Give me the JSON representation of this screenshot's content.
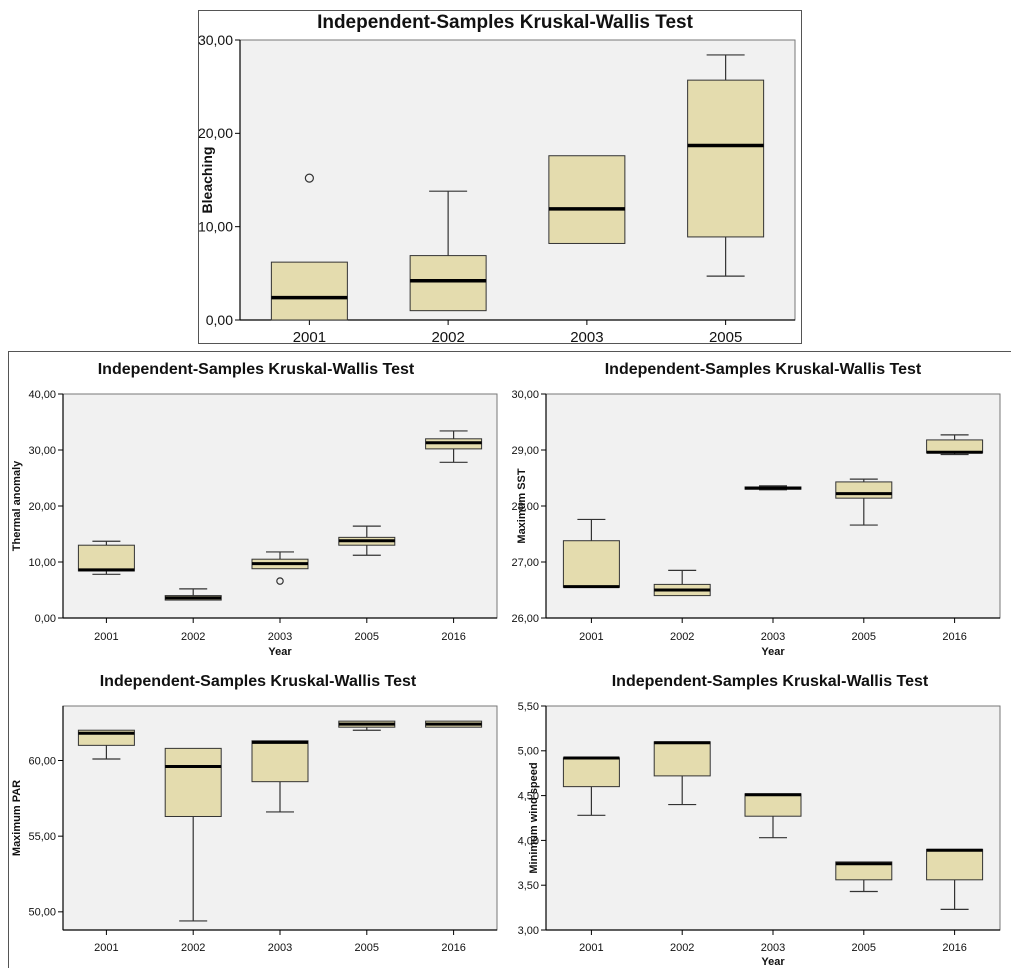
{
  "chart_data": [
    {
      "type": "boxplot",
      "title": "Independent-Samples Kruskal-Wallis Test",
      "ylabel": "Bleaching",
      "xlabel": "",
      "ylim": [
        0,
        30
      ],
      "yticks": [
        0,
        10,
        20,
        30
      ],
      "ytick_labels": [
        "0,00",
        "10,00",
        "20,00",
        "30,00"
      ],
      "categories": [
        "2001",
        "2002",
        "2003",
        "2005"
      ],
      "boxes": [
        {
          "min": 0.0,
          "q1": 0.0,
          "median": 2.4,
          "q3": 6.2,
          "max": 6.2,
          "outliers": [
            15.2
          ]
        },
        {
          "min": 1.0,
          "q1": 1.0,
          "median": 4.2,
          "q3": 6.9,
          "max": 13.8,
          "outliers": []
        },
        {
          "min": 8.2,
          "q1": 8.2,
          "median": 11.9,
          "q3": 17.6,
          "max": 17.6,
          "outliers": []
        },
        {
          "min": 4.7,
          "q1": 8.9,
          "median": 18.7,
          "q3": 25.7,
          "max": 28.4,
          "outliers": []
        }
      ]
    },
    {
      "type": "boxplot",
      "title": "Independent-Samples Kruskal-Wallis Test",
      "ylabel": "Thermal anomaly",
      "xlabel": "Year",
      "ylim": [
        0,
        40
      ],
      "yticks": [
        0,
        10,
        20,
        30,
        40
      ],
      "ytick_labels": [
        "0,00",
        "10,00",
        "20,00",
        "30,00",
        "40,00"
      ],
      "categories": [
        "2001",
        "2002",
        "2003",
        "2005",
        "2016"
      ],
      "boxes": [
        {
          "min": 7.8,
          "q1": 8.4,
          "median": 8.6,
          "q3": 13.0,
          "max": 13.7,
          "outliers": []
        },
        {
          "min": 3.2,
          "q1": 3.2,
          "median": 3.6,
          "q3": 4.0,
          "max": 5.2,
          "outliers": []
        },
        {
          "min": 8.8,
          "q1": 8.8,
          "median": 9.7,
          "q3": 10.5,
          "max": 11.8,
          "outliers": [
            6.6
          ]
        },
        {
          "min": 11.2,
          "q1": 13.0,
          "median": 13.8,
          "q3": 14.4,
          "max": 16.4,
          "outliers": []
        },
        {
          "min": 27.8,
          "q1": 30.2,
          "median": 31.3,
          "q3": 32.0,
          "max": 33.4,
          "outliers": []
        }
      ]
    },
    {
      "type": "boxplot",
      "title": "Independent-Samples Kruskal-Wallis Test",
      "ylabel": "Maximum SST",
      "xlabel": "Year",
      "ylim": [
        26,
        30
      ],
      "yticks": [
        26,
        27,
        28,
        29,
        30
      ],
      "ytick_labels": [
        "26,00",
        "27,00",
        "28,00",
        "29,00",
        "30,00"
      ],
      "categories": [
        "2001",
        "2002",
        "2003",
        "2005",
        "2016"
      ],
      "boxes": [
        {
          "min": 26.55,
          "q1": 26.55,
          "median": 26.56,
          "q3": 27.38,
          "max": 27.76,
          "outliers": []
        },
        {
          "min": 26.4,
          "q1": 26.4,
          "median": 26.5,
          "q3": 26.6,
          "max": 26.85,
          "outliers": []
        },
        {
          "min": 28.29,
          "q1": 28.3,
          "median": 28.32,
          "q3": 28.34,
          "max": 28.36,
          "outliers": []
        },
        {
          "min": 27.66,
          "q1": 28.14,
          "median": 28.22,
          "q3": 28.43,
          "max": 28.48,
          "outliers": []
        },
        {
          "min": 28.92,
          "q1": 28.95,
          "median": 28.96,
          "q3": 29.18,
          "max": 29.27,
          "outliers": []
        }
      ]
    },
    {
      "type": "boxplot",
      "title": "Independent-Samples Kruskal-Wallis Test",
      "ylabel": "Maximum PAR",
      "xlabel": "",
      "ylim": [
        48.8,
        63.6
      ],
      "yticks": [
        50,
        55,
        60
      ],
      "ytick_labels": [
        "50,00",
        "55,00",
        "60,00"
      ],
      "categories": [
        "2001",
        "2002",
        "2003",
        "2005",
        "2016"
      ],
      "boxes": [
        {
          "min": 60.1,
          "q1": 61.0,
          "median": 61.8,
          "q3": 62.0,
          "max": 62.0,
          "outliers": []
        },
        {
          "min": 49.4,
          "q1": 56.3,
          "median": 59.6,
          "q3": 60.8,
          "max": 60.8,
          "outliers": []
        },
        {
          "min": 56.6,
          "q1": 58.6,
          "median": 61.2,
          "q3": 61.3,
          "max": 61.3,
          "outliers": []
        },
        {
          "min": 62.0,
          "q1": 62.2,
          "median": 62.4,
          "q3": 62.6,
          "max": 62.6,
          "outliers": []
        },
        {
          "min": 62.2,
          "q1": 62.2,
          "median": 62.4,
          "q3": 62.6,
          "max": 62.6,
          "outliers": []
        }
      ]
    },
    {
      "type": "boxplot",
      "title": "Independent-Samples Kruskal-Wallis Test",
      "ylabel": "Minimum wind speed",
      "xlabel": "Year",
      "ylim": [
        3,
        5.5
      ],
      "yticks": [
        3,
        3.5,
        4,
        4.5,
        5,
        5.5
      ],
      "ytick_labels": [
        "3,00",
        "3,50",
        "4,00",
        "4,50",
        "5,00",
        "5,50"
      ],
      "categories": [
        "2001",
        "2002",
        "2003",
        "2005",
        "2016"
      ],
      "boxes": [
        {
          "min": 4.28,
          "q1": 4.6,
          "median": 4.92,
          "q3": 4.92,
          "max": 4.92,
          "outliers": []
        },
        {
          "min": 4.4,
          "q1": 4.72,
          "median": 5.09,
          "q3": 5.1,
          "max": 5.1,
          "outliers": []
        },
        {
          "min": 4.03,
          "q1": 4.27,
          "median": 4.51,
          "q3": 4.52,
          "max": 4.52,
          "outliers": []
        },
        {
          "min": 3.43,
          "q1": 3.56,
          "median": 3.74,
          "q3": 3.76,
          "max": 3.76,
          "outliers": []
        },
        {
          "min": 3.23,
          "q1": 3.56,
          "median": 3.89,
          "q3": 3.9,
          "max": 3.9,
          "outliers": []
        }
      ]
    }
  ],
  "colors": {
    "box_fill": "#e4dcae",
    "box_stroke": "#333333",
    "median": "#000000",
    "plot_bg": "#f1f1f1",
    "axis": "#000000"
  }
}
